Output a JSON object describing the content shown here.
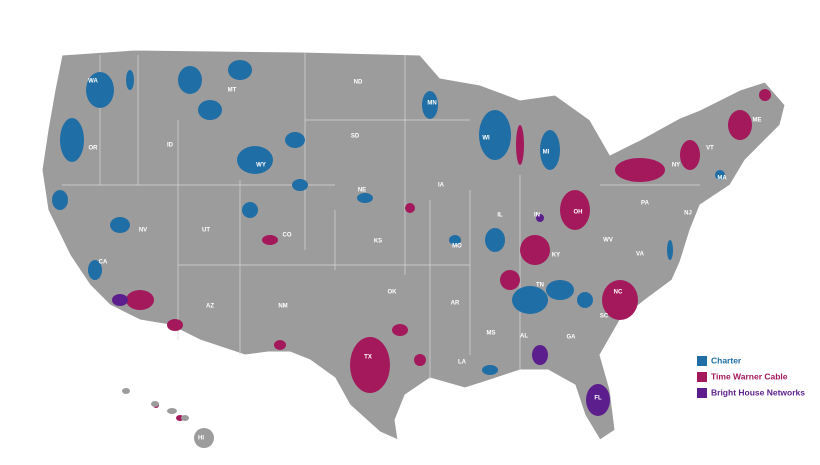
{
  "map": {
    "state_labels": [
      "WA",
      "OR",
      "CA",
      "NV",
      "ID",
      "MT",
      "WY",
      "UT",
      "AZ",
      "CO",
      "NM",
      "ND",
      "SD",
      "NE",
      "KS",
      "OK",
      "TX",
      "MN",
      "IA",
      "MO",
      "AR",
      "LA",
      "WI",
      "IL",
      "MS",
      "MI",
      "IN",
      "KY",
      "TN",
      "AL",
      "OH",
      "WV",
      "VA",
      "PA",
      "NY",
      "VT",
      "ME",
      "MA",
      "NJ",
      "NC",
      "SC",
      "GA",
      "FL",
      "HI"
    ],
    "legend": {
      "items": [
        {
          "label": "Charter",
          "color": "#1f6ea6"
        },
        {
          "label": "Time Warner Cable",
          "color": "#a3195b"
        },
        {
          "label": "Bright House Networks",
          "color": "#5b1e8c"
        }
      ]
    }
  }
}
